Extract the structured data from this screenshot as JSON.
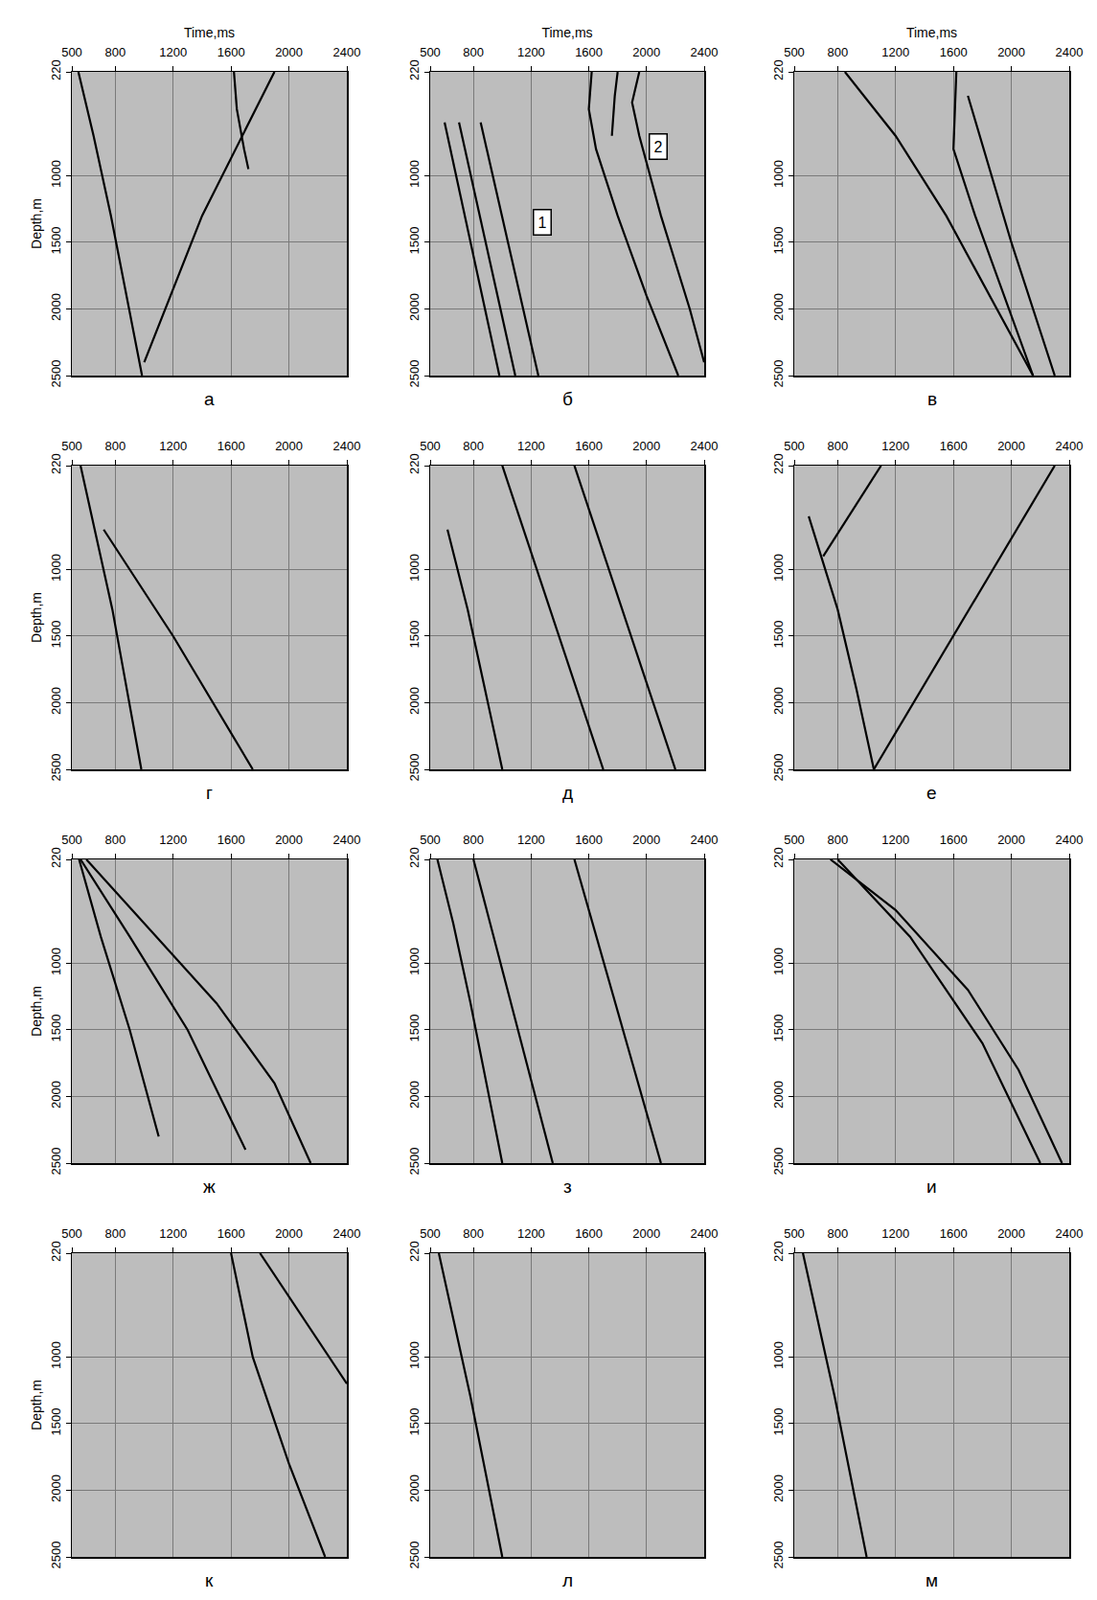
{
  "chart_data": [
    {
      "type": "line",
      "label": "а",
      "x_label": "Time,ms",
      "y_label": "Depth,m",
      "xlim": [
        500,
        2400
      ],
      "ylim": [
        2500,
        220
      ],
      "xticks": [
        500,
        800,
        1200,
        1600,
        2000,
        2400
      ],
      "yticks": [
        220,
        1000,
        1500,
        2000,
        2500
      ],
      "grid": true,
      "series": [
        {
          "color": "#000000",
          "x": [
            545,
            650,
            770,
            880,
            985
          ],
          "y": [
            220,
            700,
            1300,
            1900,
            2500
          ]
        },
        {
          "color": "#000000",
          "x": [
            1620,
            1640,
            1690,
            1720
          ],
          "y": [
            220,
            500,
            800,
            950
          ]
        },
        {
          "color": "#000000",
          "x": [
            1000,
            1400,
            1900
          ],
          "y": [
            2400,
            1300,
            220
          ]
        }
      ]
    },
    {
      "type": "line",
      "label": "б",
      "x_label": "Time,ms",
      "xlim": [
        500,
        2400
      ],
      "ylim": [
        2500,
        220
      ],
      "xticks": [
        500,
        800,
        1200,
        1600,
        2000,
        2400
      ],
      "yticks": [
        220,
        1000,
        1500,
        2000,
        2500
      ],
      "grid": true,
      "series": [
        {
          "color": "#000000",
          "x": [
            600,
            980
          ],
          "y": [
            600,
            2500
          ]
        },
        {
          "color": "#000000",
          "x": [
            700,
            1090
          ],
          "y": [
            600,
            2500
          ]
        },
        {
          "color": "#000000",
          "x": [
            850,
            1250
          ],
          "y": [
            600,
            2500
          ]
        },
        {
          "color": "#000000",
          "x": [
            1620,
            1600,
            1650,
            1800,
            2000,
            2220
          ],
          "y": [
            220,
            500,
            800,
            1300,
            1900,
            2500
          ]
        },
        {
          "color": "#000000",
          "x": [
            1800,
            1780,
            1760
          ],
          "y": [
            220,
            400,
            700
          ]
        },
        {
          "color": "#000000",
          "x": [
            1950,
            1900,
            1950,
            2100,
            2300,
            2400
          ],
          "y": [
            220,
            450,
            700,
            1300,
            2000,
            2400
          ]
        }
      ],
      "annotations": [
        {
          "text": "1",
          "x": 1280,
          "y": 1350
        },
        {
          "text": "2",
          "x": 2080,
          "y": 780
        }
      ]
    },
    {
      "type": "line",
      "label": "в",
      "x_label": "Time,ms",
      "xlim": [
        500,
        2400
      ],
      "ylim": [
        2500,
        220
      ],
      "xticks": [
        500,
        800,
        1200,
        1600,
        2000,
        2400
      ],
      "yticks": [
        220,
        1000,
        1500,
        2000,
        2500
      ],
      "grid": true,
      "series": [
        {
          "color": "#000000",
          "x": [
            850,
            1200,
            1550,
            1850,
            2150
          ],
          "y": [
            220,
            700,
            1300,
            1900,
            2500
          ]
        },
        {
          "color": "#000000",
          "x": [
            1620,
            1600,
            1750,
            1950,
            2150
          ],
          "y": [
            220,
            800,
            1300,
            1900,
            2500
          ]
        },
        {
          "color": "#000000",
          "x": [
            1700,
            2000,
            2300
          ],
          "y": [
            400,
            1500,
            2500
          ]
        }
      ]
    },
    {
      "type": "line",
      "label": "г",
      "y_label": "Depth,m",
      "xlim": [
        500,
        2400
      ],
      "ylim": [
        2500,
        220
      ],
      "xticks": [
        500,
        800,
        1200,
        1600,
        2000,
        2400
      ],
      "yticks": [
        220,
        1000,
        1500,
        2000,
        2500
      ],
      "grid": true,
      "series": [
        {
          "color": "#000000",
          "x": [
            560,
            660,
            780,
            880,
            980
          ],
          "y": [
            220,
            700,
            1300,
            1900,
            2500
          ]
        },
        {
          "color": "#000000",
          "x": [
            720,
            1200,
            1750
          ],
          "y": [
            700,
            1500,
            2500
          ]
        }
      ]
    },
    {
      "type": "line",
      "label": "д",
      "xlim": [
        500,
        2400
      ],
      "ylim": [
        2500,
        220
      ],
      "xticks": [
        500,
        800,
        1200,
        1600,
        2000,
        2400
      ],
      "yticks": [
        220,
        1000,
        1500,
        2000,
        2500
      ],
      "grid": true,
      "series": [
        {
          "color": "#000000",
          "x": [
            620,
            760,
            880,
            1000
          ],
          "y": [
            700,
            1300,
            1900,
            2500
          ]
        },
        {
          "color": "#000000",
          "x": [
            1000,
            1700
          ],
          "y": [
            220,
            2500
          ]
        },
        {
          "color": "#000000",
          "x": [
            1500,
            2200
          ],
          "y": [
            220,
            2500
          ]
        }
      ]
    },
    {
      "type": "line",
      "label": "е",
      "xlim": [
        500,
        2400
      ],
      "ylim": [
        2500,
        220
      ],
      "xticks": [
        500,
        800,
        1200,
        1600,
        2000,
        2400
      ],
      "yticks": [
        220,
        1000,
        1500,
        2000,
        2500
      ],
      "grid": true,
      "series": [
        {
          "color": "#000000",
          "x": [
            600,
            800,
            930,
            1050
          ],
          "y": [
            600,
            1300,
            1900,
            2500
          ]
        },
        {
          "color": "#000000",
          "x": [
            700,
            1100
          ],
          "y": [
            900,
            220
          ]
        },
        {
          "color": "#000000",
          "x": [
            1050,
            1600,
            2300
          ],
          "y": [
            2500,
            1500,
            220
          ]
        }
      ]
    },
    {
      "type": "line",
      "label": "ж",
      "y_label": "Depth,m",
      "xlim": [
        500,
        2400
      ],
      "ylim": [
        2500,
        220
      ],
      "xticks": [
        500,
        800,
        1200,
        1600,
        2000,
        2400
      ],
      "yticks": [
        220,
        1000,
        1500,
        2000,
        2500
      ],
      "grid": true,
      "series": [
        {
          "color": "#000000",
          "x": [
            600,
            1000,
            1500,
            1900,
            2150
          ],
          "y": [
            220,
            700,
            1300,
            1900,
            2500
          ]
        },
        {
          "color": "#000000",
          "x": [
            550,
            700,
            900,
            1100
          ],
          "y": [
            220,
            800,
            1500,
            2300
          ]
        },
        {
          "color": "#000000",
          "x": [
            560,
            900,
            1300,
            1700
          ],
          "y": [
            220,
            800,
            1500,
            2400
          ]
        }
      ]
    },
    {
      "type": "line",
      "label": "з",
      "xlim": [
        500,
        2400
      ],
      "ylim": [
        2500,
        220
      ],
      "xticks": [
        500,
        800,
        1200,
        1600,
        2000,
        2400
      ],
      "yticks": [
        220,
        1000,
        1500,
        2000,
        2500
      ],
      "grid": true,
      "series": [
        {
          "color": "#000000",
          "x": [
            550,
            660,
            780,
            890,
            1000
          ],
          "y": [
            220,
            700,
            1300,
            1900,
            2500
          ]
        },
        {
          "color": "#000000",
          "x": [
            800,
            1350
          ],
          "y": [
            220,
            2500
          ]
        },
        {
          "color": "#000000",
          "x": [
            1500,
            2100
          ],
          "y": [
            220,
            2500
          ]
        }
      ]
    },
    {
      "type": "line",
      "label": "и",
      "xlim": [
        500,
        2400
      ],
      "ylim": [
        2500,
        220
      ],
      "xticks": [
        500,
        800,
        1200,
        1600,
        2000,
        2400
      ],
      "yticks": [
        220,
        1000,
        1500,
        2000,
        2500
      ],
      "grid": true,
      "series": [
        {
          "color": "#000000",
          "x": [
            750,
            1200,
            1700,
            2050,
            2350
          ],
          "y": [
            220,
            600,
            1200,
            1800,
            2500
          ]
        },
        {
          "color": "#000000",
          "x": [
            800,
            1300,
            1800,
            2200
          ],
          "y": [
            220,
            800,
            1600,
            2500
          ]
        }
      ]
    },
    {
      "type": "line",
      "label": "к",
      "y_label": "Depth,m",
      "xlim": [
        500,
        2400
      ],
      "ylim": [
        2500,
        220
      ],
      "xticks": [
        500,
        800,
        1200,
        1600,
        2000,
        2400
      ],
      "yticks": [
        220,
        1000,
        1500,
        2000,
        2500
      ],
      "grid": true,
      "series": [
        {
          "color": "#000000",
          "x": [
            1600,
            1750,
            2000,
            2250
          ],
          "y": [
            220,
            1000,
            1800,
            2500
          ]
        },
        {
          "color": "#000000",
          "x": [
            1800,
            2400
          ],
          "y": [
            220,
            1200
          ]
        }
      ]
    },
    {
      "type": "line",
      "label": "л",
      "xlim": [
        500,
        2400
      ],
      "ylim": [
        2500,
        220
      ],
      "xticks": [
        500,
        800,
        1200,
        1600,
        2000,
        2400
      ],
      "yticks": [
        220,
        1000,
        1500,
        2000,
        2500
      ],
      "grid": true,
      "series": [
        {
          "color": "#000000",
          "x": [
            560,
            660,
            780,
            890,
            1000
          ],
          "y": [
            220,
            700,
            1300,
            1900,
            2500
          ]
        }
      ]
    },
    {
      "type": "line",
      "label": "м",
      "xlim": [
        500,
        2400
      ],
      "ylim": [
        2500,
        220
      ],
      "xticks": [
        500,
        800,
        1200,
        1600,
        2000,
        2400
      ],
      "yticks": [
        220,
        1000,
        1500,
        2000,
        2500
      ],
      "grid": true,
      "series": [
        {
          "color": "#000000",
          "x": [
            560,
            660,
            780,
            890,
            1000
          ],
          "y": [
            220,
            700,
            1300,
            1900,
            2500
          ]
        }
      ]
    }
  ]
}
